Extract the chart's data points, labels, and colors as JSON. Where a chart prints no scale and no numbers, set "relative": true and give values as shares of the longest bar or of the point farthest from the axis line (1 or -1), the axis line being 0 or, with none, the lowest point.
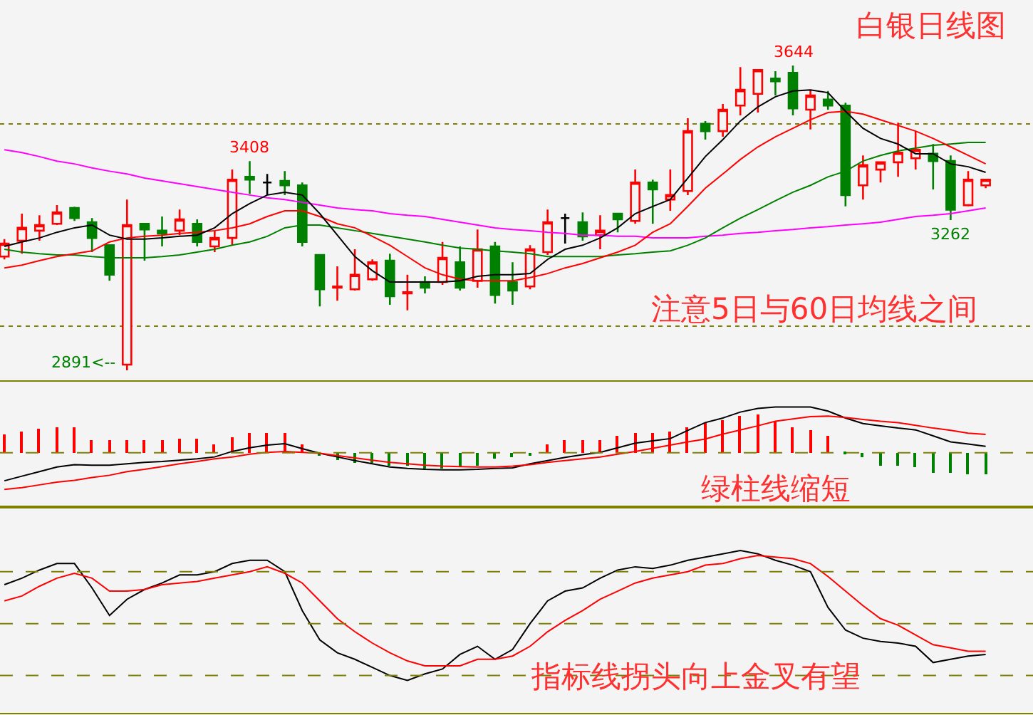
{
  "chart_data": [
    {
      "type": "candlestick",
      "tick_labels": false,
      "grid": "y",
      "legend": false,
      "categories": [
        null,
        null,
        null,
        null,
        null,
        null,
        null,
        null,
        null,
        null,
        null,
        null,
        null,
        null,
        null,
        null,
        null,
        null,
        null,
        null,
        null,
        null,
        null,
        null,
        null,
        null,
        null,
        null,
        null,
        null,
        null,
        null,
        null,
        null,
        null,
        null,
        null,
        null,
        null,
        null,
        null,
        null,
        null,
        null,
        null,
        null,
        null,
        null,
        null,
        null,
        null,
        null,
        null,
        null,
        null,
        null,
        null
      ],
      "ylim": [
        2866,
        3806
      ],
      "yticks": [
        {
          "value": 3000,
          "label": null
        },
        {
          "value": 3500,
          "label": null
        }
      ],
      "ohlc": [
        [
          3172,
          3215,
          3165,
          3204
        ],
        [
          3211,
          3278,
          3179,
          3243
        ],
        [
          3236,
          3274,
          3211,
          3250
        ],
        [
          3253,
          3299,
          3250,
          3281
        ],
        [
          3292,
          3295,
          3260,
          3267
        ],
        [
          3257,
          3267,
          3183,
          3218
        ],
        [
          3200,
          3200,
          3112,
          3127
        ],
        [
          2905,
          3313,
          2891,
          3250
        ],
        [
          3253,
          3253,
          3162,
          3239
        ],
        [
          3236,
          3271,
          3197,
          3229
        ],
        [
          3236,
          3288,
          3225,
          3264
        ],
        [
          3253,
          3264,
          3197,
          3208
        ],
        [
          3197,
          3236,
          3183,
          3218
        ],
        [
          3218,
          3387,
          3200,
          3362
        ],
        [
          3369,
          3408,
          3327,
          3362
        ],
        [
          3355,
          3376,
          3324,
          3355
        ],
        [
          3359,
          3383,
          3324,
          3348
        ],
        [
          3348,
          3355,
          3197,
          3208
        ],
        [
          3176,
          3176,
          3049,
          3091
        ],
        [
          3095,
          3148,
          3063,
          3098
        ],
        [
          3091,
          3190,
          3088,
          3127
        ],
        [
          3116,
          3165,
          3112,
          3158
        ],
        [
          3162,
          3179,
          3053,
          3074
        ],
        [
          3081,
          3127,
          3039,
          3084
        ],
        [
          3109,
          3123,
          3081,
          3095
        ],
        [
          3109,
          3208,
          3102,
          3169
        ],
        [
          3158,
          3197,
          3088,
          3095
        ],
        [
          3112,
          3239,
          3095,
          3190
        ],
        [
          3197,
          3208,
          3056,
          3077
        ],
        [
          3109,
          3158,
          3053,
          3088
        ],
        [
          3098,
          3200,
          3091,
          3190
        ],
        [
          3183,
          3288,
          3176,
          3257
        ],
        [
          3267,
          3278,
          3204,
          3267
        ],
        [
          3257,
          3281,
          3211,
          3222
        ],
        [
          3225,
          3274,
          3190,
          3236
        ],
        [
          3278,
          3278,
          3232,
          3264
        ],
        [
          3260,
          3387,
          3253,
          3355
        ],
        [
          3355,
          3362,
          3253,
          3338
        ],
        [
          3313,
          3387,
          3285,
          3324
        ],
        [
          3334,
          3514,
          3324,
          3482
        ],
        [
          3500,
          3507,
          3461,
          3482
        ],
        [
          3482,
          3549,
          3468,
          3535
        ],
        [
          3545,
          3640,
          3521,
          3584
        ],
        [
          3574,
          3633,
          3528,
          3633
        ],
        [
          3612,
          3630,
          3570,
          3605
        ],
        [
          3626,
          3644,
          3521,
          3538
        ],
        [
          3535,
          3584,
          3486,
          3570
        ],
        [
          3560,
          3581,
          3535,
          3545
        ],
        [
          3545,
          3552,
          3296,
          3324
        ],
        [
          3348,
          3422,
          3313,
          3398
        ],
        [
          3387,
          3405,
          3355,
          3405
        ],
        [
          3405,
          3503,
          3369,
          3429
        ],
        [
          3415,
          3482,
          3387,
          3436
        ],
        [
          3426,
          3450,
          3338,
          3408
        ],
        [
          3408,
          3422,
          3262,
          3288
        ],
        [
          3299,
          3383,
          3296,
          3362
        ],
        [
          3348,
          3362,
          3341,
          3362
        ]
      ],
      "colors": [
        "#ff0000",
        "#ff0000",
        "#ff0000",
        "#ff0000",
        "#008000",
        "#008000",
        "#008000",
        "#ff0000",
        "#008000",
        "#008000",
        "#ff0000",
        "#008000",
        "#ff0000",
        "#ff0000",
        "#008000",
        "#000000",
        "#008000",
        "#008000",
        "#008000",
        "#ff0000",
        "#ff0000",
        "#ff0000",
        "#008000",
        "#ff0000",
        "#008000",
        "#ff0000",
        "#008000",
        "#ff0000",
        "#008000",
        "#008000",
        "#ff0000",
        "#ff0000",
        "#000000",
        "#008000",
        "#ff0000",
        "#008000",
        "#ff0000",
        "#008000",
        "#ff0000",
        "#ff0000",
        "#008000",
        "#ff0000",
        "#ff0000",
        "#ff0000",
        "#008000",
        "#008000",
        "#ff0000",
        "#008000",
        "#008000",
        "#ff0000",
        "#ff0000",
        "#ff0000",
        "#ff0000",
        "#008000",
        "#008000",
        "#ff0000",
        "#ff0000"
      ],
      "series": [
        {
          "type": "line",
          "color": "#ff00ff",
          "values": [
            3436,
            3429,
            3419,
            3408,
            3401,
            3391,
            3383,
            3376,
            3366,
            3359,
            3352,
            3345,
            3338,
            3331,
            3324,
            3317,
            3313,
            3306,
            3299,
            3292,
            3288,
            3285,
            3278,
            3274,
            3271,
            3264,
            3257,
            3250,
            3243,
            3239,
            3236,
            3232,
            3229,
            3225,
            3225,
            3222,
            3222,
            3218,
            3218,
            3218,
            3222,
            3225,
            3229,
            3232,
            3236,
            3239,
            3243,
            3246,
            3250,
            3253,
            3257,
            3264,
            3271,
            3274,
            3278,
            3285,
            3292
          ]
        },
        {
          "type": "line",
          "color": "#008000",
          "values": [
            3190,
            3183,
            3179,
            3176,
            3176,
            3172,
            3169,
            3169,
            3169,
            3172,
            3176,
            3183,
            3190,
            3200,
            3208,
            3222,
            3243,
            3250,
            3250,
            3243,
            3236,
            3229,
            3222,
            3215,
            3208,
            3200,
            3193,
            3190,
            3186,
            3183,
            3179,
            3172,
            3172,
            3172,
            3172,
            3176,
            3179,
            3183,
            3186,
            3200,
            3218,
            3243,
            3267,
            3288,
            3310,
            3331,
            3348,
            3369,
            3383,
            3408,
            3422,
            3433,
            3440,
            3447,
            3450,
            3454,
            3454
          ]
        },
        {
          "type": "line",
          "color": "#ff0000",
          "values": [
            3144,
            3151,
            3162,
            3172,
            3179,
            3186,
            3208,
            3218,
            3222,
            3225,
            3229,
            3232,
            3236,
            3243,
            3253,
            3271,
            3285,
            3285,
            3271,
            3253,
            3243,
            3222,
            3200,
            3172,
            3144,
            3127,
            3116,
            3112,
            3112,
            3112,
            3120,
            3130,
            3144,
            3155,
            3169,
            3183,
            3200,
            3232,
            3253,
            3296,
            3341,
            3376,
            3412,
            3443,
            3468,
            3489,
            3510,
            3528,
            3531,
            3524,
            3510,
            3496,
            3482,
            3464,
            3443,
            3422,
            3401
          ]
        },
        {
          "type": "line",
          "color": "#000000",
          "values": [
            3197,
            3208,
            3218,
            3232,
            3243,
            3250,
            3225,
            3215,
            3215,
            3218,
            3222,
            3225,
            3243,
            3278,
            3303,
            3324,
            3331,
            3324,
            3278,
            3225,
            3172,
            3137,
            3109,
            3109,
            3109,
            3109,
            3112,
            3123,
            3127,
            3127,
            3130,
            3165,
            3190,
            3200,
            3218,
            3243,
            3278,
            3296,
            3313,
            3366,
            3419,
            3461,
            3507,
            3542,
            3567,
            3581,
            3584,
            3577,
            3531,
            3489,
            3464,
            3450,
            3426,
            3426,
            3401,
            3394,
            3380
          ]
        }
      ],
      "annotations": [
        "白银日线图",
        "注意5日与60日均线之间",
        {
          "text": "3644",
          "y": 3644
        },
        {
          "text": "3408",
          "y": 3408
        },
        {
          "text": "3262",
          "y": 3262
        },
        "2891<--"
      ]
    },
    {
      "type": "bar",
      "relative": true,
      "tick_labels": false,
      "legend": false,
      "categories": [
        null,
        null,
        null,
        null,
        null,
        null,
        null,
        null,
        null,
        null,
        null,
        null,
        null,
        null,
        null,
        null,
        null,
        null,
        null,
        null,
        null,
        null,
        null,
        null,
        null,
        null,
        null,
        null,
        null,
        null,
        null,
        null,
        null,
        null,
        null,
        null,
        null,
        null,
        null,
        null,
        null,
        null,
        null,
        null,
        null,
        null,
        null,
        null,
        null,
        null,
        null,
        null,
        null,
        null,
        null,
        null,
        null
      ],
      "series": [
        {
          "type": "bar",
          "colors": [
            "#ff0000",
            "#ff0000",
            "#ff0000",
            "#ff0000",
            "#ff0000",
            "#ff0000",
            "#ff0000",
            "#ff0000",
            "#ff0000",
            "#ff0000",
            "#ff0000",
            "#ff0000",
            "#ff0000",
            "#ff0000",
            "#ff0000",
            "#ff0000",
            "#ff0000",
            "#ff0000",
            "#008000",
            "#008000",
            "#008000",
            "#008000",
            "#008000",
            "#008000",
            "#008000",
            "#008000",
            "#008000",
            "#008000",
            "#008000",
            "#008000",
            "#008000",
            "#ff0000",
            "#ff0000",
            "#ff0000",
            "#ff0000",
            "#ff0000",
            "#ff0000",
            "#ff0000",
            "#ff0000",
            "#ff0000",
            "#ff0000",
            "#ff0000",
            "#ff0000",
            "#ff0000",
            "#ff0000",
            "#ff0000",
            "#ff0000",
            "#ff0000",
            "#008000",
            "#008000",
            "#008000",
            "#008000",
            "#008000",
            "#008000",
            "#008000",
            "#008000",
            "#008000"
          ],
          "values": [
            0.4,
            0.47,
            0.51,
            0.54,
            0.54,
            0.29,
            0.29,
            0.29,
            0.29,
            0.29,
            0.31,
            0.31,
            0.19,
            0.34,
            0.43,
            0.43,
            0.43,
            0.19,
            -0.07,
            -0.17,
            -0.21,
            -0.21,
            -0.29,
            -0.29,
            -0.34,
            -0.34,
            -0.31,
            -0.29,
            -0.14,
            -0.11,
            -0.07,
            0.17,
            0.29,
            0.29,
            0.29,
            0.36,
            0.43,
            0.43,
            0.46,
            0.57,
            0.64,
            0.71,
            0.81,
            0.83,
            0.69,
            0.57,
            0.5,
            0.36,
            -0.04,
            -0.11,
            -0.29,
            -0.29,
            -0.31,
            -0.43,
            -0.43,
            -0.46,
            -0.46
          ]
        },
        {
          "type": "line",
          "color": "#000000",
          "values": [
            -0.61,
            -0.51,
            -0.41,
            -0.31,
            -0.26,
            -0.27,
            -0.27,
            -0.24,
            -0.21,
            -0.19,
            -0.16,
            -0.13,
            -0.09,
            0.03,
            0.11,
            0.17,
            0.2,
            0.09,
            -0.01,
            -0.09,
            -0.17,
            -0.24,
            -0.31,
            -0.34,
            -0.36,
            -0.37,
            -0.37,
            -0.36,
            -0.34,
            -0.33,
            -0.24,
            -0.17,
            -0.1,
            -0.04,
            0.01,
            0.11,
            0.21,
            0.26,
            0.31,
            0.49,
            0.66,
            0.76,
            0.89,
            0.97,
            1.0,
            1.0,
            1.0,
            0.91,
            0.76,
            0.64,
            0.59,
            0.54,
            0.5,
            0.37,
            0.24,
            0.19,
            0.14
          ]
        },
        {
          "type": "line",
          "color": "#ff0000",
          "values": [
            -0.8,
            -0.76,
            -0.7,
            -0.64,
            -0.6,
            -0.54,
            -0.49,
            -0.41,
            -0.36,
            -0.3,
            -0.24,
            -0.19,
            -0.13,
            -0.09,
            -0.03,
            0.01,
            0.03,
            0.01,
            -0.01,
            -0.06,
            -0.11,
            -0.16,
            -0.21,
            -0.24,
            -0.27,
            -0.29,
            -0.3,
            -0.31,
            -0.31,
            -0.29,
            -0.26,
            -0.21,
            -0.17,
            -0.13,
            -0.09,
            -0.03,
            0.03,
            0.1,
            0.17,
            0.24,
            0.3,
            0.41,
            0.5,
            0.59,
            0.69,
            0.74,
            0.79,
            0.8,
            0.77,
            0.73,
            0.69,
            0.66,
            0.6,
            0.54,
            0.49,
            0.43,
            0.4
          ]
        }
      ],
      "ref_lines": [
        {
          "axis": "y",
          "value": 0,
          "color": "#808000",
          "line_style": "dashed"
        }
      ],
      "annotations": [
        "绿柱线缩短"
      ]
    },
    {
      "type": "line",
      "relative": true,
      "tick_labels": false,
      "legend": false,
      "categories": [
        null,
        null,
        null,
        null,
        null,
        null,
        null,
        null,
        null,
        null,
        null,
        null,
        null,
        null,
        null,
        null,
        null,
        null,
        null,
        null,
        null,
        null,
        null,
        null,
        null,
        null,
        null,
        null,
        null,
        null,
        null,
        null,
        null,
        null,
        null,
        null,
        null,
        null,
        null,
        null,
        null,
        null,
        null,
        null,
        null,
        null,
        null,
        null,
        null,
        null,
        null,
        null,
        null,
        null,
        null,
        null,
        null
      ],
      "series": [
        {
          "color": "#000000",
          "values": [
            0.79,
            0.83,
            0.88,
            0.92,
            0.92,
            0.77,
            0.6,
            0.7,
            0.76,
            0.8,
            0.85,
            0.85,
            0.87,
            0.92,
            0.94,
            0.94,
            0.87,
            0.63,
            0.45,
            0.37,
            0.33,
            0.28,
            0.23,
            0.2,
            0.24,
            0.27,
            0.36,
            0.41,
            0.33,
            0.39,
            0.55,
            0.69,
            0.75,
            0.77,
            0.83,
            0.88,
            0.9,
            0.89,
            0.91,
            0.94,
            0.96,
            0.98,
            1.0,
            0.98,
            0.94,
            0.91,
            0.87,
            0.65,
            0.51,
            0.46,
            0.44,
            0.43,
            0.41,
            0.31,
            0.33,
            0.35,
            0.36
          ]
        },
        {
          "color": "#ff0000",
          "values": [
            0.69,
            0.72,
            0.78,
            0.83,
            0.86,
            0.83,
            0.75,
            0.75,
            0.76,
            0.79,
            0.8,
            0.81,
            0.83,
            0.85,
            0.87,
            0.9,
            0.86,
            0.8,
            0.69,
            0.58,
            0.5,
            0.43,
            0.37,
            0.32,
            0.29,
            0.29,
            0.29,
            0.33,
            0.33,
            0.35,
            0.41,
            0.5,
            0.57,
            0.63,
            0.7,
            0.75,
            0.8,
            0.83,
            0.85,
            0.87,
            0.91,
            0.92,
            0.95,
            0.97,
            0.96,
            0.95,
            0.92,
            0.84,
            0.75,
            0.66,
            0.58,
            0.54,
            0.48,
            0.42,
            0.4,
            0.38,
            0.38
          ]
        }
      ],
      "ref_lines": [
        {
          "axis": "y",
          "value": 0.87,
          "color": "#808000",
          "line_style": "dashed"
        },
        {
          "axis": "y",
          "value": 0.55,
          "color": "#808000",
          "line_style": "dashed"
        },
        {
          "axis": "y",
          "value": 0.23,
          "color": "#808000",
          "line_style": "dashed"
        }
      ],
      "annotations": [
        "指标线拐头向上金叉有望"
      ]
    }
  ]
}
